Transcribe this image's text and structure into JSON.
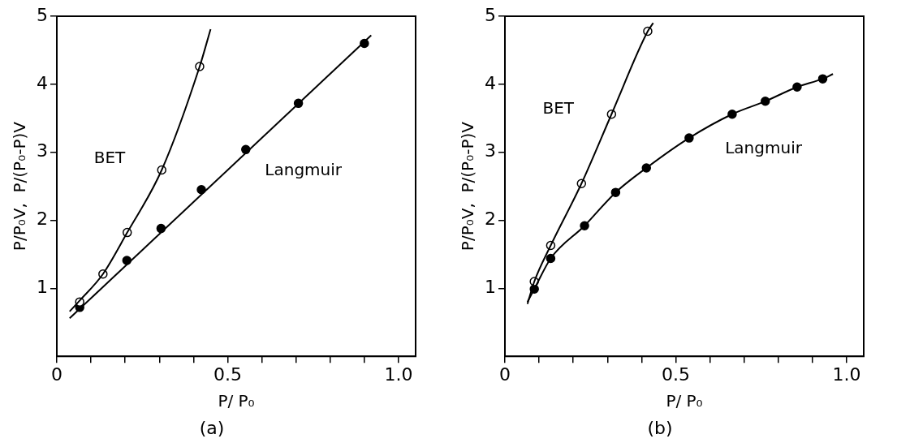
{
  "chart_data": [
    {
      "type": "scatter",
      "title": "(a)",
      "xlabel": "P/ P₀",
      "ylabel": "P/P₀V,  P/(P₀-P)V",
      "xlim": [
        0,
        1.05
      ],
      "ylim": [
        0,
        5
      ],
      "marker": "circle",
      "grid": false,
      "legend": false,
      "xticks": [
        {
          "value": 0,
          "label": "0"
        },
        {
          "value": 0.1,
          "label": null
        },
        {
          "value": 0.2,
          "label": null
        },
        {
          "value": 0.3,
          "label": null
        },
        {
          "value": 0.4,
          "label": null
        },
        0.5,
        {
          "value": 0.6,
          "label": null
        },
        {
          "value": 0.7,
          "label": null
        },
        {
          "value": 0.8,
          "label": null
        },
        {
          "value": 0.9,
          "label": null
        },
        {
          "value": 1,
          "label": "1.0"
        }
      ],
      "yticks": [
        1,
        2,
        3,
        4,
        5
      ],
      "series": [
        {
          "type": "line",
          "name": "BET",
          "marker": "none",
          "color": "#000000",
          "x": [
            0.0375,
            0.067,
            0.135,
            0.206,
            0.307,
            0.418,
            0.45
          ],
          "values": [
            0.66,
            0.82,
            1.21,
            1.82,
            2.74,
            4.26,
            4.81
          ]
        },
        {
          "type": "line",
          "name": "Langmuir",
          "marker": "none",
          "color": "#000000",
          "x": [
            0.0375,
            0.92
          ],
          "values": [
            0.56,
            4.72
          ]
        },
        {
          "color": "#ffffff",
          "x": [
            0.067,
            0.135,
            0.206,
            0.307,
            0.418
          ],
          "values": [
            0.8,
            1.21,
            1.82,
            2.74,
            4.26
          ]
        },
        {
          "color": "#000000",
          "x": [
            0.067,
            0.205,
            0.305,
            0.423,
            0.553,
            0.707,
            0.9
          ],
          "values": [
            0.72,
            1.41,
            1.88,
            2.45,
            3.04,
            3.72,
            4.6
          ]
        }
      ]
    },
    {
      "type": "scatter",
      "title": "(b)",
      "xlabel": "P/ P₀",
      "ylabel": "P/P₀V,  P/(P₀-P)V",
      "xlim": [
        0,
        1.05
      ],
      "ylim": [
        0,
        5
      ],
      "marker": "circle",
      "grid": false,
      "legend": false,
      "xticks": [
        {
          "value": 0,
          "label": "0"
        },
        {
          "value": 0.1,
          "label": null
        },
        {
          "value": 0.2,
          "label": null
        },
        {
          "value": 0.3,
          "label": null
        },
        {
          "value": 0.4,
          "label": null
        },
        0.5,
        {
          "value": 0.6,
          "label": null
        },
        {
          "value": 0.7,
          "label": null
        },
        {
          "value": 0.8,
          "label": null
        },
        {
          "value": 0.9,
          "label": null
        },
        {
          "value": 1,
          "label": "1.0"
        }
      ],
      "yticks": [
        1,
        2,
        3,
        4,
        5
      ],
      "series": [
        {
          "type": "line",
          "name": "BET",
          "marker": "none",
          "color": "#000000",
          "x": [
            0.066,
            0.086,
            0.134,
            0.224,
            0.312,
            0.418,
            0.434
          ],
          "values": [
            0.77,
            1.1,
            1.63,
            2.54,
            3.56,
            4.78,
            4.9
          ]
        },
        {
          "type": "line",
          "name": "Langmuir",
          "marker": "none",
          "color": "#000000",
          "x": [
            0.066,
            0.086,
            0.134,
            0.233,
            0.324,
            0.414,
            0.539,
            0.665,
            0.762,
            0.855,
            0.93,
            0.96
          ],
          "values": [
            0.8,
            0.99,
            1.44,
            1.92,
            2.41,
            2.77,
            3.21,
            3.56,
            3.75,
            3.96,
            4.08,
            4.15
          ]
        },
        {
          "color": "#ffffff",
          "x": [
            0.086,
            0.134,
            0.224,
            0.312,
            0.418
          ],
          "values": [
            1.1,
            1.63,
            2.54,
            3.56,
            4.78
          ]
        },
        {
          "color": "#000000",
          "x": [
            0.086,
            0.134,
            0.233,
            0.324,
            0.414,
            0.539,
            0.665,
            0.762,
            0.855,
            0.93
          ],
          "values": [
            0.99,
            1.44,
            1.92,
            2.41,
            2.77,
            3.21,
            3.56,
            3.75,
            3.96,
            4.08
          ]
        }
      ]
    }
  ]
}
